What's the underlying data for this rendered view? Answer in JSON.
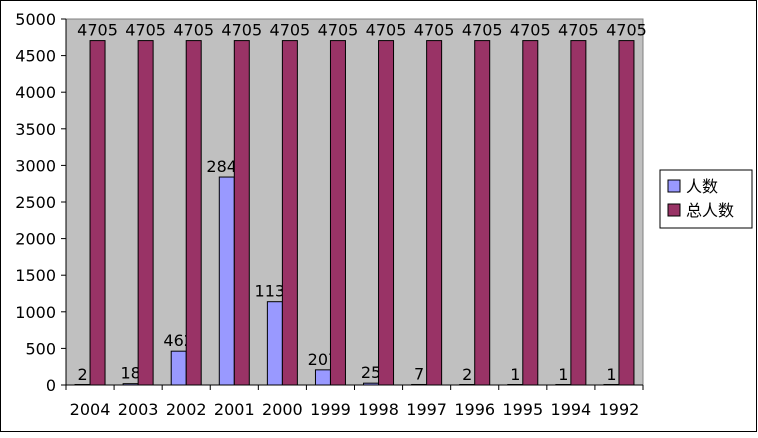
{
  "chart_data": {
    "type": "bar",
    "title": "",
    "xlabel": "",
    "ylabel": "",
    "categories": [
      "2004",
      "2003",
      "2002",
      "2001",
      "2000",
      "1999",
      "1998",
      "1997",
      "1996",
      "1995",
      "1994",
      "1992"
    ],
    "series": [
      {
        "name": "人数",
        "values": [
          2,
          18,
          462,
          2841,
          1138,
          207,
          25,
          7,
          2,
          1,
          1,
          1
        ],
        "color": "#9999ff"
      },
      {
        "name": "总人数",
        "values": [
          4705,
          4705,
          4705,
          4705,
          4705,
          4705,
          4705,
          4705,
          4705,
          4705,
          4705,
          4705
        ],
        "color": "#993366"
      }
    ],
    "ylim": [
      0,
      5000
    ],
    "yticks": [
      0,
      500,
      1000,
      1500,
      2000,
      2500,
      3000,
      3500,
      4000,
      4500,
      5000
    ],
    "grid": false,
    "legend": "right",
    "data_labels": true,
    "plot_background": "#c0c0c0"
  }
}
